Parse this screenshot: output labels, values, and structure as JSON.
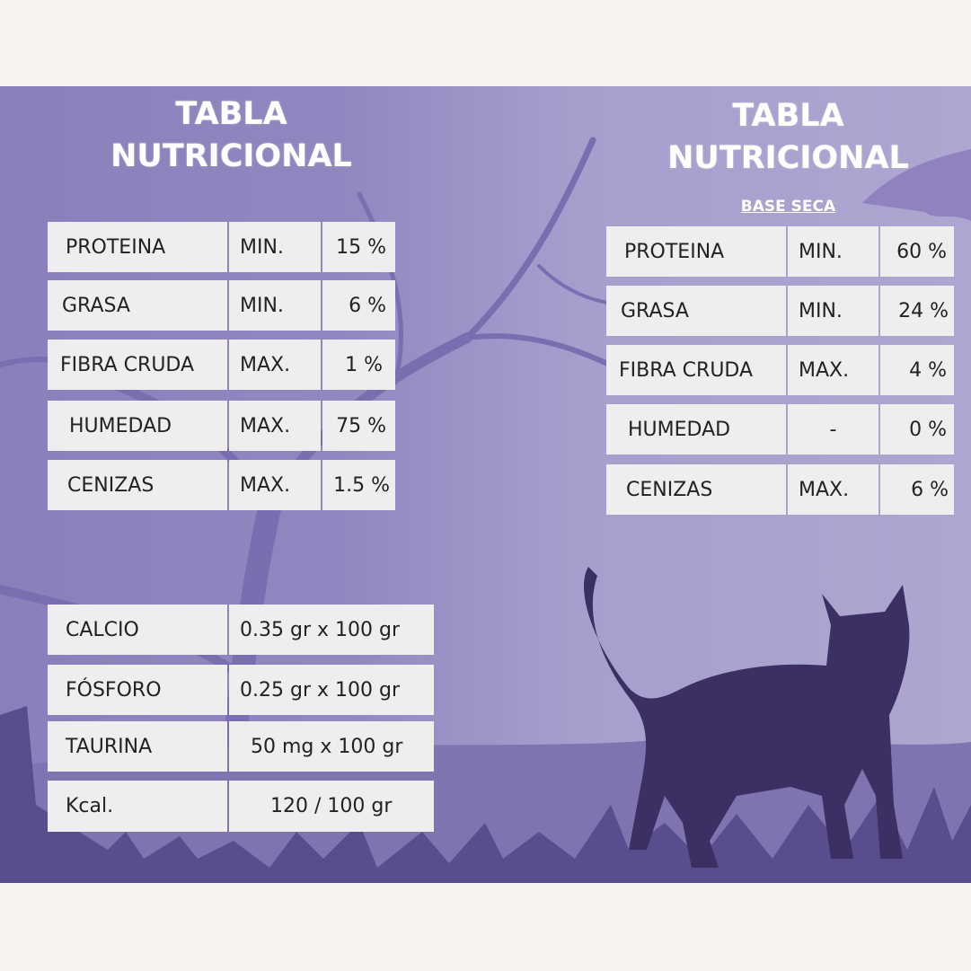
{
  "left_table": {
    "title_line1": "TABLA",
    "title_line2": "NUTRICIONAL",
    "rows": [
      {
        "name": "PROTEINA",
        "limit": "MIN.",
        "value": "15 %"
      },
      {
        "name": "GRASA",
        "limit": "MIN.",
        "value": "6 %"
      },
      {
        "name": "FIBRA CRUDA",
        "limit": "MAX.",
        "value": "1 %"
      },
      {
        "name": "HUMEDAD",
        "limit": "MAX.",
        "value": "75 %"
      },
      {
        "name": "CENIZAS",
        "limit": "MAX.",
        "value": "1.5 %"
      }
    ]
  },
  "right_table": {
    "title_line1": "TABLA",
    "title_line2": "NUTRICIONAL",
    "subtitle": "BASE SECA",
    "rows": [
      {
        "name": "PROTEINA",
        "limit": "MIN.",
        "value": "60 %"
      },
      {
        "name": "GRASA",
        "limit": "MIN.",
        "value": "24 %"
      },
      {
        "name": "FIBRA CRUDA",
        "limit": "MAX.",
        "value": "4 %"
      },
      {
        "name": "HUMEDAD",
        "limit": "-",
        "value": "0 %"
      },
      {
        "name": "CENIZAS",
        "limit": "MAX.",
        "value": "6 %"
      }
    ]
  },
  "minerals_table": {
    "rows": [
      {
        "name": "CALCIO",
        "value": "0.35 gr x 100 gr"
      },
      {
        "name": "FÓSFORO",
        "value": "0.25 gr x 100 gr"
      },
      {
        "name": "TAURINA",
        "value": "50 mg x 100 gr"
      },
      {
        "name": "Kcal.",
        "value": "120 / 100 gr"
      }
    ]
  },
  "colors": {
    "background_left": "#8b7fbb",
    "background_right": "#aca6d0",
    "silhouette": "#3b2f63",
    "cell": "#efeeee",
    "page": "#f6f3ef"
  }
}
